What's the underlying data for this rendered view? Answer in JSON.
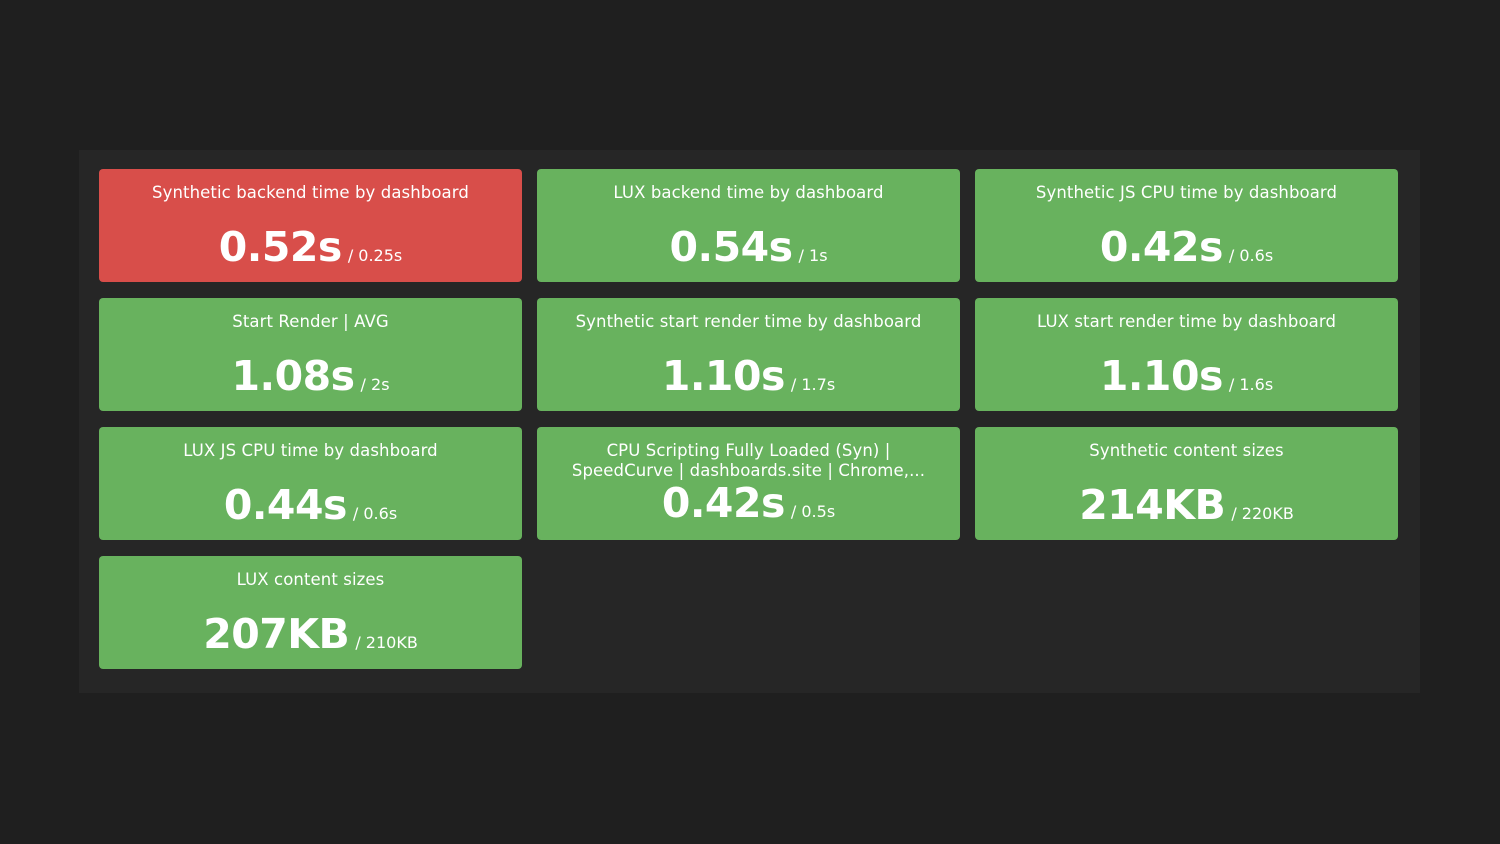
{
  "colors": {
    "background": "#1f1f1f",
    "panel": "#262626",
    "ok": "#68b25e",
    "bad": "#d84e4a"
  },
  "tiles": [
    {
      "title": "Synthetic backend time by dashboard",
      "value": "0.52s",
      "target": "/ 0.25s",
      "status": "bad"
    },
    {
      "title": "LUX backend time by dashboard",
      "value": "0.54s",
      "target": "/ 1s",
      "status": "ok"
    },
    {
      "title": "Synthetic JS CPU time by dashboard",
      "value": "0.42s",
      "target": "/ 0.6s",
      "status": "ok"
    },
    {
      "title": "Start Render | AVG",
      "value": "1.08s",
      "target": "/ 2s",
      "status": "ok"
    },
    {
      "title": "Synthetic start render time by dashboard",
      "value": "1.10s",
      "target": "/ 1.7s",
      "status": "ok"
    },
    {
      "title": "LUX start render time by dashboard",
      "value": "1.10s",
      "target": "/ 1.6s",
      "status": "ok"
    },
    {
      "title": "LUX JS CPU time by dashboard",
      "value": "0.44s",
      "target": "/ 0.6s",
      "status": "ok"
    },
    {
      "title": "CPU Scripting Fully Loaded (Syn) |\nSpeedCurve | dashboards.site | Chrome,...",
      "value": "0.42s",
      "target": "/ 0.5s",
      "status": "ok"
    },
    {
      "title": "Synthetic content sizes",
      "value": "214KB",
      "target": "/ 220KB",
      "status": "ok"
    },
    {
      "title": "LUX content sizes",
      "value": "207KB",
      "target": "/ 210KB",
      "status": "ok"
    }
  ]
}
